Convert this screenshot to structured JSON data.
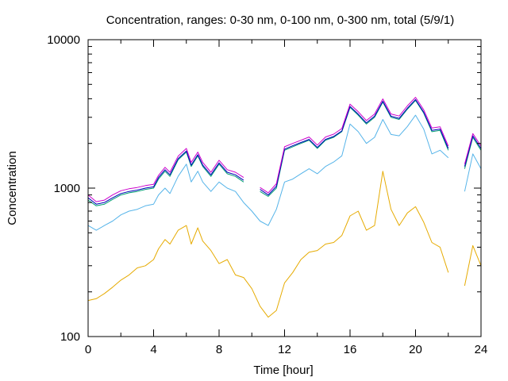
{
  "chart_data": {
    "type": "line",
    "title": "Concentration, ranges: 0-30 nm, 0-100 nm, 0-300 nm, total (5/9/1)",
    "xlabel": "Time [hour]",
    "ylabel": "Concentration",
    "xlim": [
      0,
      24
    ],
    "ylim": [
      100,
      10000
    ],
    "y_scale": "log",
    "grid": false,
    "legend": "none",
    "x_ticks": [
      "0",
      "4",
      "8",
      "12",
      "16",
      "20",
      "24"
    ],
    "y_ticks": [
      "100",
      "1000",
      "10000"
    ],
    "x": [
      0,
      0.5,
      1,
      1.5,
      2,
      2.5,
      3,
      3.5,
      4,
      4.3,
      4.7,
      5,
      5.5,
      6,
      6.3,
      6.7,
      7,
      7.5,
      8,
      8.5,
      9,
      9.5,
      10,
      10.5,
      11,
      11.5,
      12,
      12.5,
      13,
      13.5,
      14,
      14.5,
      15,
      15.5,
      16,
      16.5,
      17,
      17.5,
      18,
      18.5,
      19,
      19.5,
      20,
      20.5,
      21,
      21.5,
      22,
      22.5,
      23,
      23.5,
      24
    ],
    "series": [
      {
        "color": "#e6ab02",
        "values": [
          175,
          180,
          195,
          215,
          240,
          260,
          290,
          300,
          330,
          390,
          450,
          420,
          520,
          560,
          420,
          540,
          440,
          380,
          310,
          330,
          260,
          250,
          210,
          160,
          135,
          150,
          230,
          270,
          330,
          370,
          380,
          420,
          430,
          480,
          650,
          700,
          520,
          560,
          1300,
          720,
          560,
          680,
          750,
          590,
          430,
          400,
          270,
          null,
          220,
          410,
          300
        ]
      },
      {
        "color": "#56b4e9",
        "values": [
          560,
          520,
          560,
          600,
          660,
          700,
          720,
          760,
          780,
          900,
          1000,
          920,
          1200,
          1450,
          1100,
          1300,
          1100,
          950,
          1100,
          1000,
          950,
          800,
          700,
          600,
          560,
          720,
          1100,
          1150,
          1250,
          1350,
          1250,
          1400,
          1500,
          1650,
          2700,
          2400,
          2000,
          2200,
          2900,
          2300,
          2250,
          2600,
          3100,
          2500,
          1700,
          1800,
          1600,
          null,
          950,
          1700,
          1350
        ]
      },
      {
        "color": "#009e73",
        "values": [
          830,
          760,
          780,
          840,
          900,
          930,
          950,
          980,
          1000,
          1150,
          1300,
          1200,
          1550,
          1750,
          1400,
          1650,
          1400,
          1200,
          1450,
          1250,
          1200,
          1100,
          null,
          950,
          880,
          1000,
          1800,
          1900,
          2000,
          2100,
          1850,
          2100,
          2200,
          2400,
          3500,
          3100,
          2700,
          3000,
          3800,
          3000,
          2900,
          3400,
          3900,
          3200,
          2400,
          2450,
          1800,
          null,
          1350,
          2200,
          1800
        ]
      },
      {
        "color": "#0000bb",
        "values": [
          860,
          780,
          800,
          860,
          920,
          950,
          970,
          1000,
          1020,
          1180,
          1330,
          1230,
          1580,
          1780,
          1430,
          1680,
          1430,
          1230,
          1480,
          1280,
          1230,
          1130,
          null,
          980,
          900,
          1030,
          1830,
          1930,
          2030,
          2130,
          1880,
          2130,
          2230,
          2430,
          3550,
          3150,
          2750,
          3050,
          3850,
          3050,
          2950,
          3450,
          3950,
          3250,
          2450,
          2500,
          1850,
          null,
          1400,
          2250,
          1850
        ]
      },
      {
        "color": "#cc00cc",
        "values": [
          900,
          810,
          830,
          900,
          960,
          990,
          1010,
          1040,
          1060,
          1220,
          1380,
          1280,
          1640,
          1850,
          1490,
          1750,
          1490,
          1280,
          1540,
          1330,
          1280,
          1180,
          null,
          1010,
          930,
          1070,
          1900,
          2000,
          2100,
          2210,
          1950,
          2210,
          2310,
          2520,
          3680,
          3270,
          2850,
          3160,
          3990,
          3160,
          3060,
          3580,
          4090,
          3370,
          2540,
          2590,
          1920,
          null,
          1450,
          2330,
          1920
        ]
      }
    ]
  }
}
